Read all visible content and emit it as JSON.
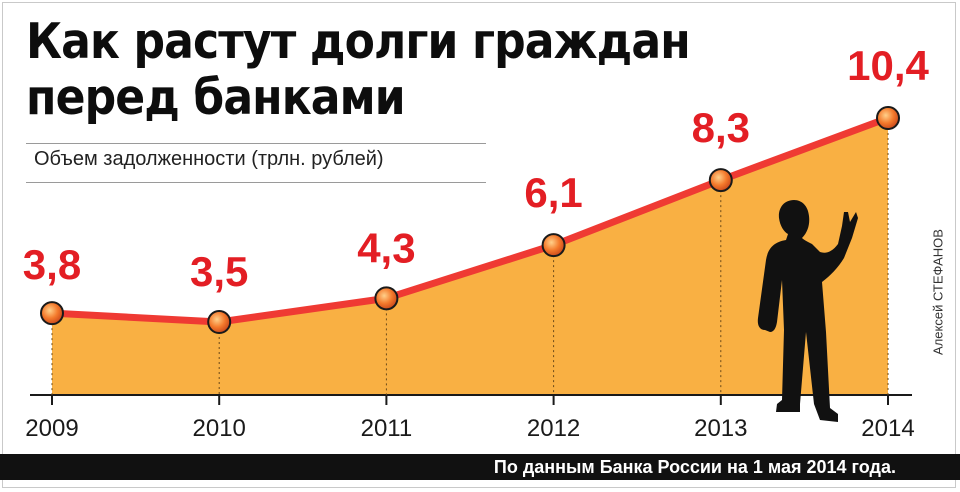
{
  "header": {
    "title_line1": "Как растут долги граждан",
    "title_line2": "перед банками",
    "subtitle": "Объем задолженности (трлн. рублей)"
  },
  "credit": "Алексей СТЕФАНОВ",
  "footer": {
    "source": "По данным Банка России на 1 мая 2014 года."
  },
  "colors": {
    "area": "#f9b043",
    "line": "#ef3a33",
    "marker": "#f26722",
    "value_label": "#e31e24"
  },
  "chart_data": {
    "type": "area",
    "title": "Как растут долги граждан перед банками",
    "subtitle": "Объем задолженности (трлн. рублей)",
    "xlabel": "",
    "ylabel": "",
    "categories": [
      "2009",
      "2010",
      "2011",
      "2012",
      "2013",
      "2014"
    ],
    "values": [
      3.8,
      3.5,
      4.3,
      6.1,
      8.3,
      10.4
    ],
    "value_labels": [
      "3,8",
      "3,5",
      "4,3",
      "6,1",
      "8,3",
      "10,4"
    ],
    "ylim": [
      0,
      10.4
    ],
    "grid": false,
    "legend": "none"
  }
}
